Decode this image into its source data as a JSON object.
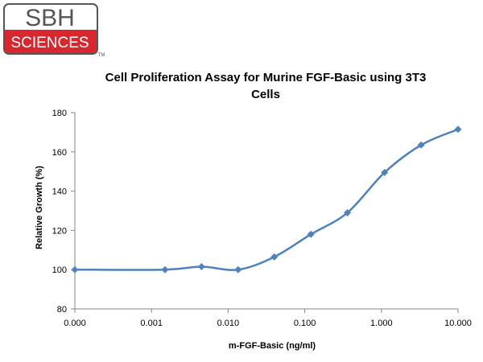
{
  "logo": {
    "top_text": "SBH",
    "bottom_text": "SCIENCES",
    "trademark": "TM",
    "colors": {
      "red": "#d7282f",
      "gray": "#555555",
      "white": "#ffffff"
    }
  },
  "chart_data": {
    "type": "line",
    "title_lines": [
      "Cell Proliferation Assay for Murine FGF-Basic using 3T3",
      "Cells"
    ],
    "xlabel": "m-FGF-Basic  (ng/ml)",
    "ylabel": "Relative Growth (%)",
    "x_scale": "log",
    "x_tick_labels": [
      "0.000",
      "0.001",
      "0.010",
      "0.100",
      "1.000",
      "10.000"
    ],
    "y_ticks": [
      80,
      100,
      120,
      140,
      160,
      180
    ],
    "ylim": [
      80,
      180
    ],
    "grid": false,
    "legend": "none",
    "series": [
      {
        "color": "#4f81bd",
        "marker": "diamond",
        "x": [
          0.0001,
          0.0015,
          0.0045,
          0.0135,
          0.04,
          0.12,
          0.36,
          1.1,
          3.3,
          10
        ],
        "y": [
          100,
          100,
          101.5,
          100,
          106.5,
          118,
          129,
          149.5,
          163.5,
          171.5
        ]
      }
    ]
  }
}
